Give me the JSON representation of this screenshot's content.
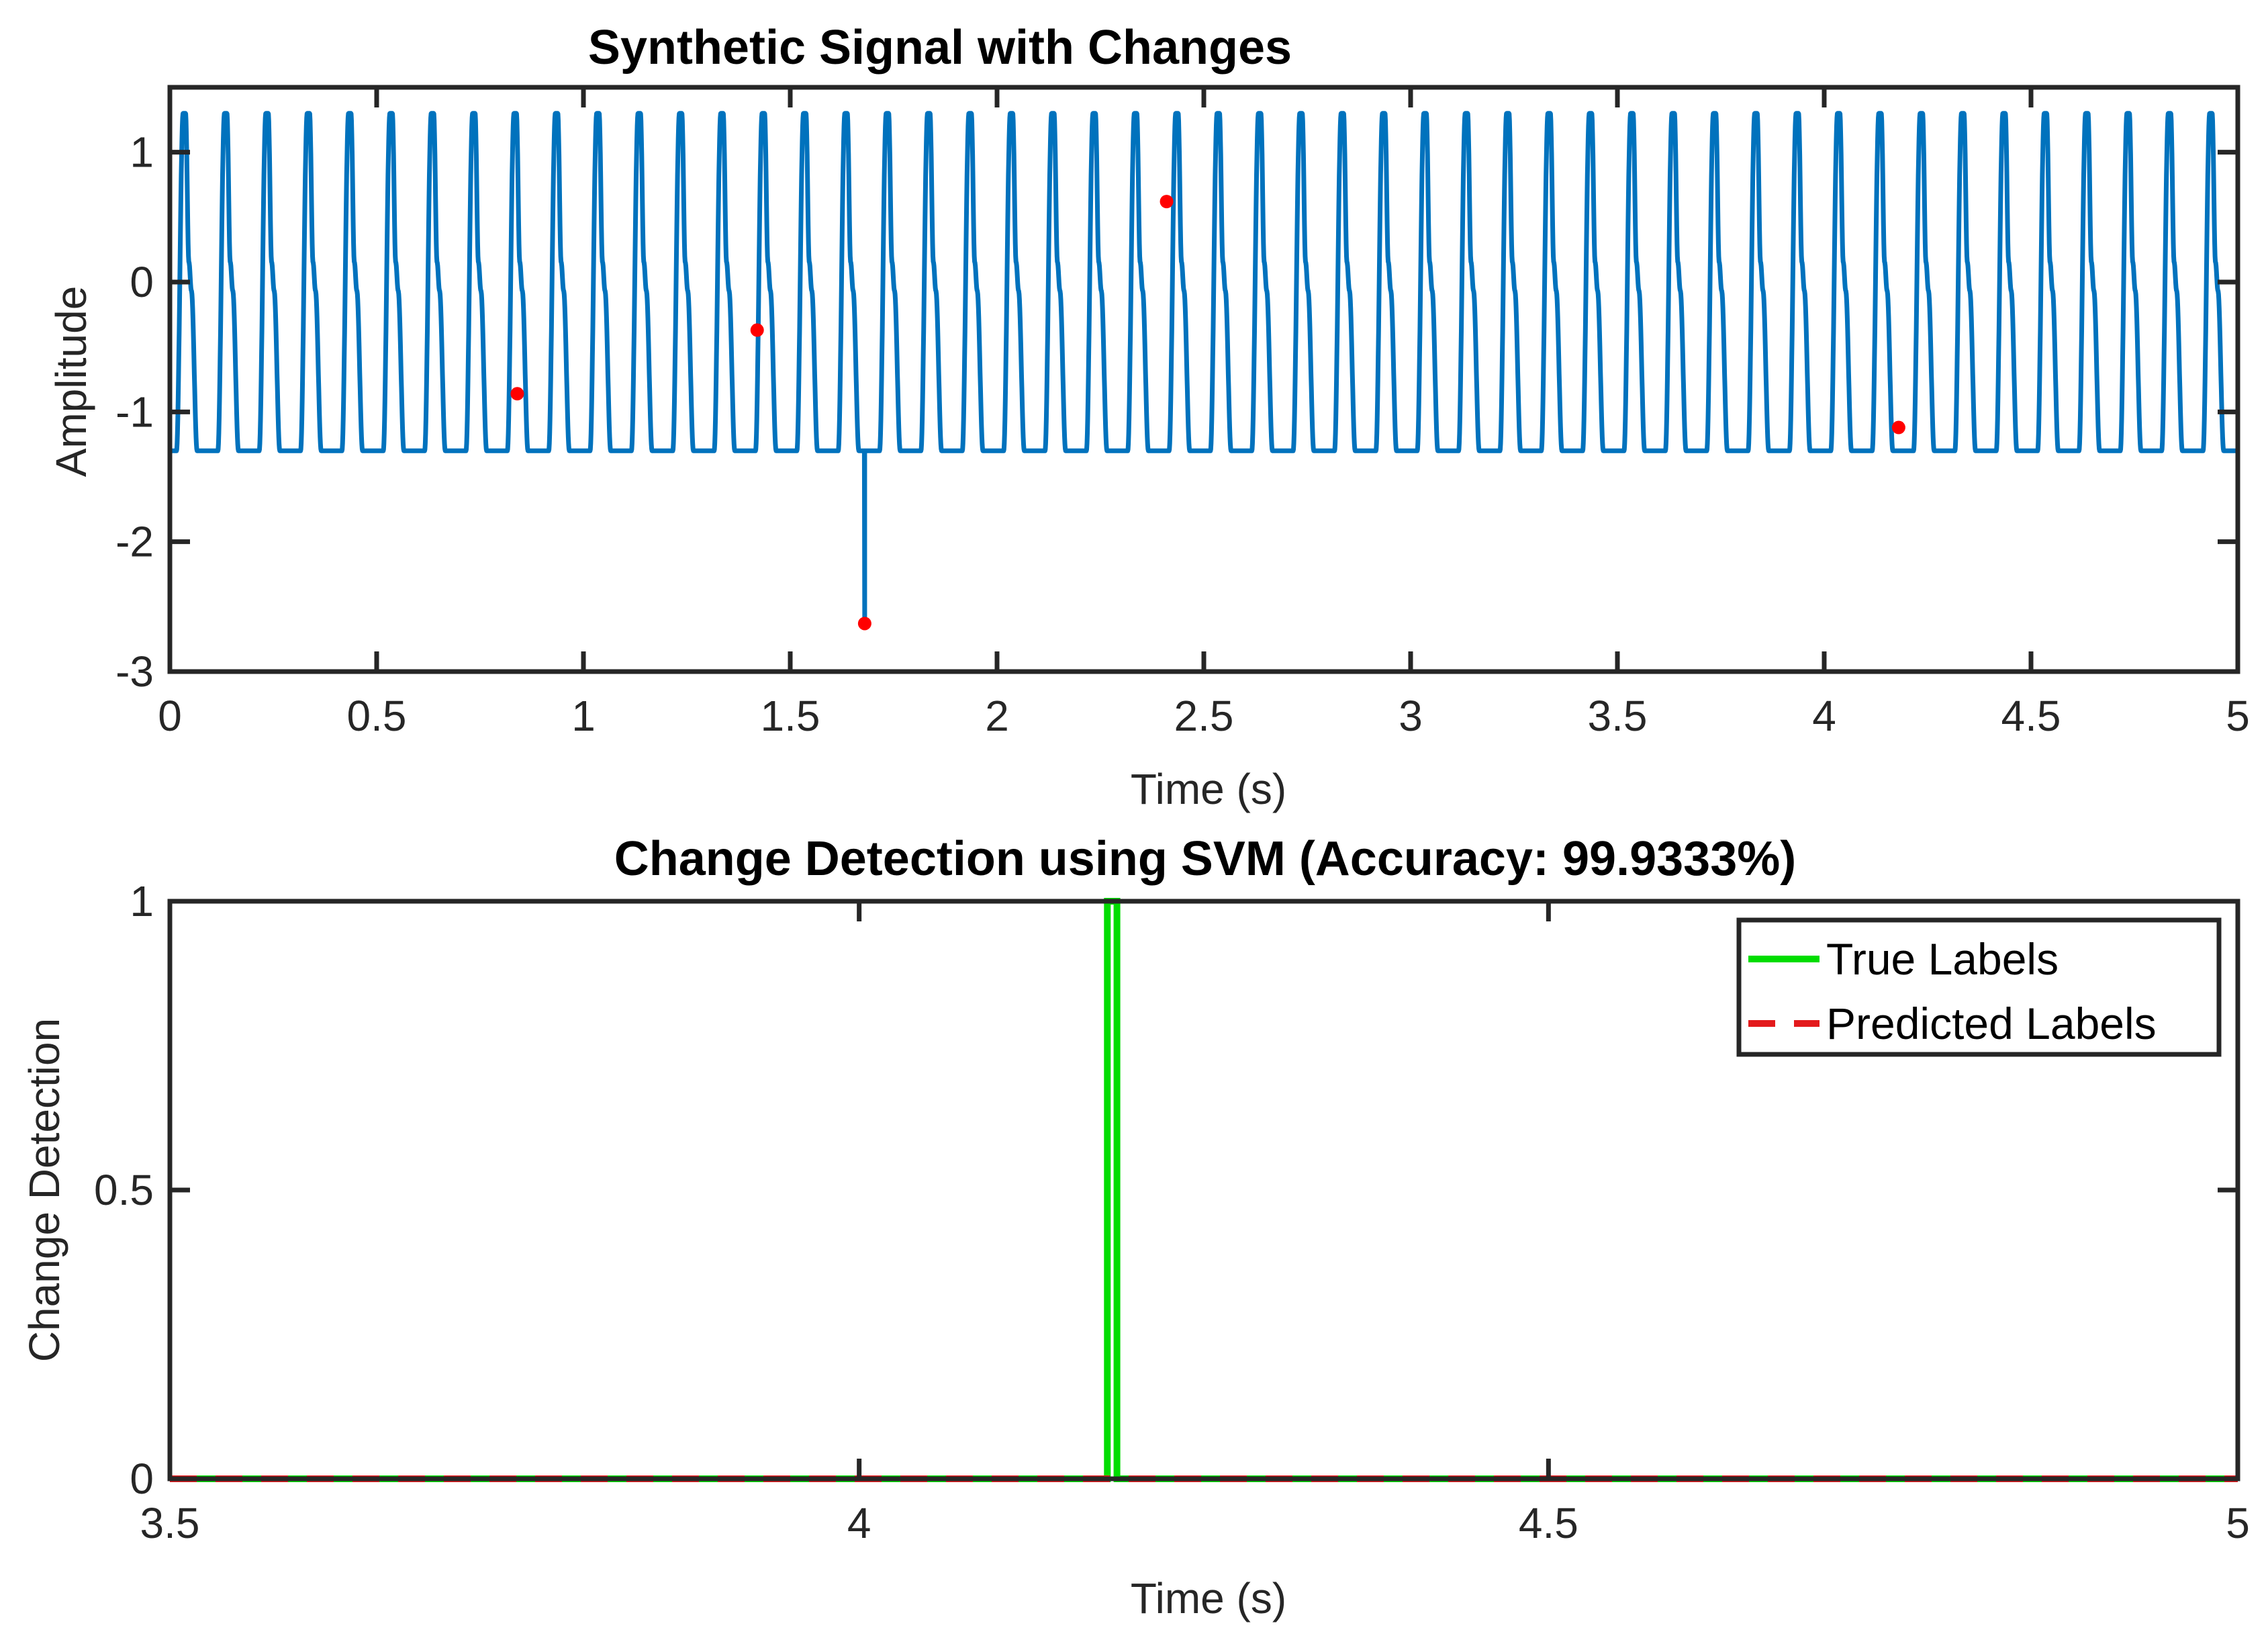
{
  "chart_data": [
    {
      "type": "line",
      "title": "Synthetic Signal with Changes",
      "xlabel": "Time (s)",
      "ylabel": "Amplitude",
      "xlim": [
        0,
        5
      ],
      "ylim": [
        -3,
        1.5
      ],
      "xticks": [
        0,
        0.5,
        1,
        1.5,
        2,
        2.5,
        3,
        3.5,
        4,
        4.5,
        5
      ],
      "xtick_labels": [
        "0",
        "0.5",
        "1",
        "1.5",
        "2",
        "2.5",
        "3",
        "3.5",
        "4",
        "4.5",
        "5"
      ],
      "yticks": [
        1,
        0,
        -1,
        -2,
        -3
      ],
      "ytick_labels": [
        "1",
        "0",
        "-1",
        "-2",
        "-3"
      ],
      "signal": {
        "name": "signal",
        "frequency_hz": 10,
        "amplitude": 1.3,
        "color": "#0072BD",
        "spike": {
          "time": 1.68,
          "value": -2.63
        }
      },
      "change_points": {
        "color": "#FF0000",
        "x": [
          0.84,
          1.42,
          1.68,
          2.41,
          4.18
        ],
        "y": [
          -0.86,
          -0.37,
          -2.63,
          0.62,
          -1.12
        ]
      }
    },
    {
      "type": "line",
      "title": "Change Detection using SVM (Accuracy: 99.9333%)",
      "xlabel": "Time (s)",
      "ylabel": "Change Detection",
      "xlim": [
        3.5,
        5
      ],
      "ylim": [
        0,
        1
      ],
      "xticks": [
        3.5,
        4,
        4.5,
        5
      ],
      "xtick_labels": [
        "3.5",
        "4",
        "4.5",
        "5"
      ],
      "yticks": [
        1,
        0.5,
        0
      ],
      "ytick_labels": [
        "1",
        "0.5",
        "0"
      ],
      "series": [
        {
          "name": "True Labels",
          "color": "#00DD00",
          "style": "solid",
          "x": [
            3.5,
            4.18,
            4.18,
            4.187,
            4.187,
            5
          ],
          "y": [
            0,
            0,
            1,
            1,
            0,
            0
          ]
        },
        {
          "name": "Predicted Labels",
          "color": "#E31A1C",
          "style": "dashed",
          "x": [
            3.5,
            5
          ],
          "y": [
            0,
            0
          ]
        }
      ],
      "legend": {
        "position": "top-right",
        "entries": [
          "True Labels",
          "Predicted Labels"
        ]
      }
    }
  ]
}
